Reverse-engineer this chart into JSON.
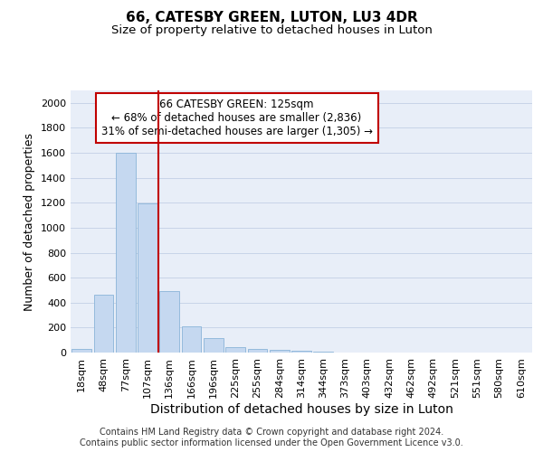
{
  "title": "66, CATESBY GREEN, LUTON, LU3 4DR",
  "subtitle": "Size of property relative to detached houses in Luton",
  "xlabel": "Distribution of detached houses by size in Luton",
  "ylabel": "Number of detached properties",
  "categories": [
    "18sqm",
    "48sqm",
    "77sqm",
    "107sqm",
    "136sqm",
    "166sqm",
    "196sqm",
    "225sqm",
    "255sqm",
    "284sqm",
    "314sqm",
    "344sqm",
    "373sqm",
    "403sqm",
    "432sqm",
    "462sqm",
    "492sqm",
    "521sqm",
    "551sqm",
    "580sqm",
    "610sqm"
  ],
  "values": [
    30,
    460,
    1600,
    1195,
    490,
    210,
    115,
    45,
    30,
    20,
    12,
    5,
    2,
    0,
    0,
    0,
    0,
    0,
    0,
    0,
    0
  ],
  "bar_color": "#c5d8f0",
  "bar_edge_color": "#8ab4d8",
  "vline_x": 3.5,
  "vline_color": "#c00000",
  "annotation_text": "66 CATESBY GREEN: 125sqm\n← 68% of detached houses are smaller (2,836)\n31% of semi-detached houses are larger (1,305) →",
  "annotation_box_color": "#ffffff",
  "annotation_box_edge": "#c00000",
  "ylim": [
    0,
    2100
  ],
  "yticks": [
    0,
    200,
    400,
    600,
    800,
    1000,
    1200,
    1400,
    1600,
    1800,
    2000
  ],
  "grid_color": "#c8d4e8",
  "bg_color": "#e8eef8",
  "footer": "Contains HM Land Registry data © Crown copyright and database right 2024.\nContains public sector information licensed under the Open Government Licence v3.0.",
  "title_fontsize": 11,
  "subtitle_fontsize": 9.5,
  "ylabel_fontsize": 9,
  "xlabel_fontsize": 10,
  "tick_fontsize": 8,
  "footer_fontsize": 7,
  "ann_fontsize": 8.5
}
